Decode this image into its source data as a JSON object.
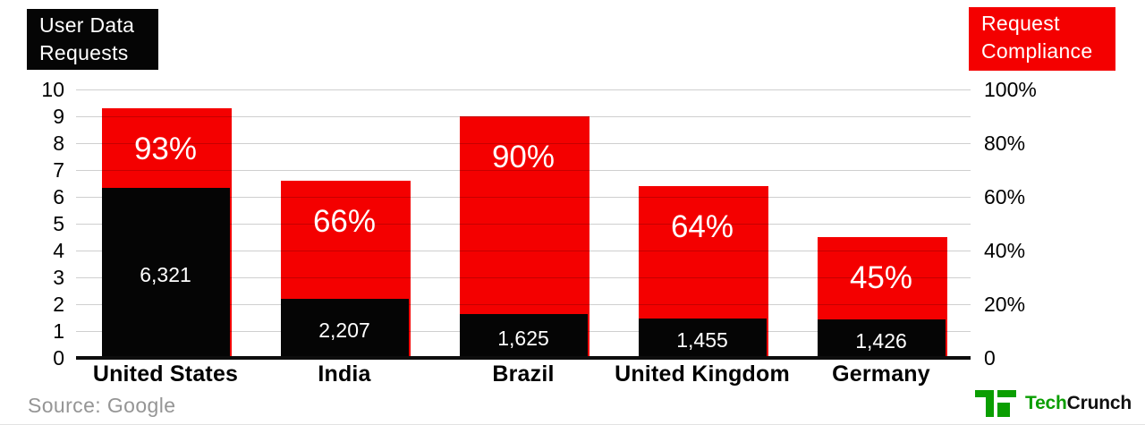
{
  "legend": {
    "left": {
      "lines": [
        "User Data",
        "Requests"
      ]
    },
    "right": {
      "lines": [
        "Request",
        "Compliance"
      ]
    }
  },
  "chart_data": {
    "type": "bar",
    "categories": [
      "United States",
      "India",
      "Brazil",
      "United Kingdom",
      "Germany"
    ],
    "series": [
      {
        "name": "User Data Requests",
        "axis": "left",
        "values": [
          6321,
          2207,
          1625,
          1455,
          1426
        ],
        "value_labels": [
          "6,321",
          "2,207",
          "1,625",
          "1,455",
          "1,426"
        ]
      },
      {
        "name": "Request Compliance",
        "axis": "right",
        "values": [
          93,
          66,
          90,
          64,
          45
        ],
        "value_labels": [
          "93%",
          "66%",
          "90%",
          "64%",
          "45%"
        ]
      }
    ],
    "left_axis": {
      "min": 0,
      "max": 10000,
      "tick_labels": [
        "10",
        "9",
        "8",
        "7",
        "6",
        "5",
        "4",
        "3",
        "2",
        "1",
        "0"
      ]
    },
    "right_axis": {
      "min": 0,
      "max": 100,
      "tick_labels": [
        "100%",
        "80%",
        "60%",
        "40%",
        "20%",
        "0"
      ]
    },
    "grid": true,
    "legend_position": "top-corners"
  },
  "colors": {
    "requests_black": "#050505",
    "compliance_red": "#f40000",
    "axis_line": "#0d0d0d",
    "source_gray": "#959595",
    "brand_green": "#0a9e01",
    "wordmark_black": "#111111"
  },
  "footer": {
    "source": "Source: Google",
    "logo_text_green": "Tech",
    "logo_text_black": "Crunch"
  }
}
